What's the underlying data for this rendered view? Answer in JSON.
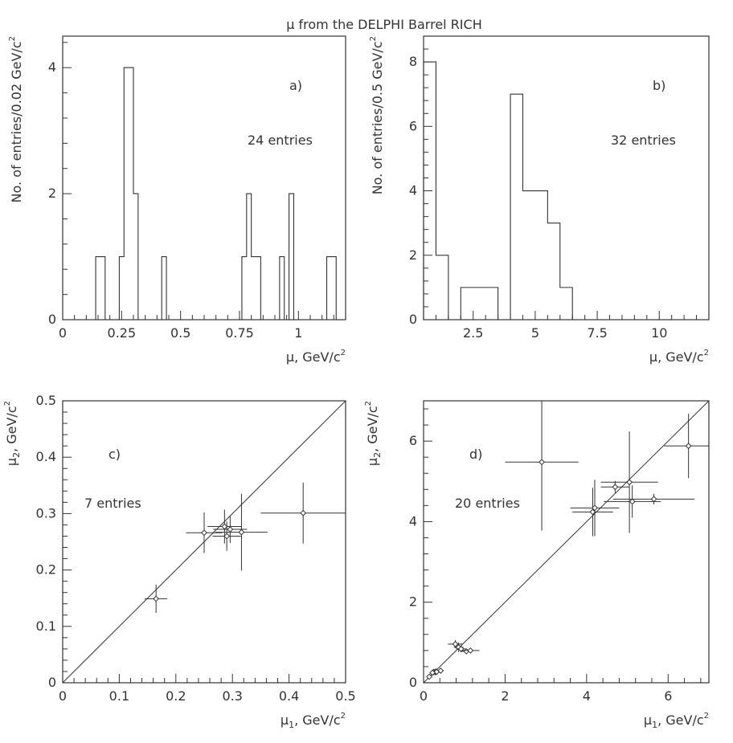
{
  "figure_title": "μ from the DELPHI Barrel RICH",
  "chart_data": [
    {
      "id": "a",
      "type": "histogram",
      "panel_label": "a)",
      "annotation": "24 entries",
      "xlabel": "μ, GeV/c",
      "xlabel_sup": "2",
      "ylabel": "No. of entries/0.02 GeV/c",
      "ylabel_sup": "2",
      "xlim": [
        0,
        1.2
      ],
      "ylim": [
        0,
        4.5
      ],
      "xticks": [
        0,
        0.25,
        0.5,
        0.75,
        1
      ],
      "xtick_labels": [
        "0",
        "0.25",
        "0.5",
        "0.75",
        "1"
      ],
      "yticks": [
        0,
        2,
        4
      ],
      "ytick_labels": [
        "0",
        "2",
        "4"
      ],
      "bin_width": 0.02,
      "bins": [
        {
          "x": 0.14,
          "count": 1
        },
        {
          "x": 0.16,
          "count": 1
        },
        {
          "x": 0.24,
          "count": 1
        },
        {
          "x": 0.26,
          "count": 4
        },
        {
          "x": 0.28,
          "count": 4
        },
        {
          "x": 0.3,
          "count": 2
        },
        {
          "x": 0.42,
          "count": 1
        },
        {
          "x": 0.76,
          "count": 1
        },
        {
          "x": 0.78,
          "count": 2
        },
        {
          "x": 0.8,
          "count": 1
        },
        {
          "x": 0.82,
          "count": 1
        },
        {
          "x": 0.92,
          "count": 1
        },
        {
          "x": 0.96,
          "count": 2
        },
        {
          "x": 1.12,
          "count": 1
        },
        {
          "x": 1.14,
          "count": 1
        }
      ]
    },
    {
      "id": "b",
      "type": "histogram",
      "panel_label": "b)",
      "annotation": "32 entries",
      "xlabel": "μ, GeV/c",
      "xlabel_sup": "2",
      "ylabel": "No. of entries/0.5 GeV/c",
      "ylabel_sup": "2",
      "xlim": [
        0.5,
        12
      ],
      "ylim": [
        0,
        8.8
      ],
      "xticks": [
        2.5,
        5,
        7.5,
        10
      ],
      "xtick_labels": [
        "2.5",
        "5",
        "7.5",
        "10"
      ],
      "yticks": [
        0,
        2,
        4,
        6,
        8
      ],
      "ytick_labels": [
        "0",
        "2",
        "4",
        "6",
        "8"
      ],
      "bin_width": 0.5,
      "bins": [
        {
          "x": 0.5,
          "count": 8
        },
        {
          "x": 1.0,
          "count": 2
        },
        {
          "x": 2.0,
          "count": 1
        },
        {
          "x": 2.5,
          "count": 1
        },
        {
          "x": 3.0,
          "count": 1
        },
        {
          "x": 4.0,
          "count": 7
        },
        {
          "x": 4.5,
          "count": 4
        },
        {
          "x": 5.0,
          "count": 4
        },
        {
          "x": 5.5,
          "count": 3
        },
        {
          "x": 6.0,
          "count": 1
        }
      ]
    },
    {
      "id": "c",
      "type": "scatter",
      "panel_label": "c)",
      "annotation": "7 entries",
      "xlabel": "μ",
      "xlabel_sub": "1",
      "xlabel_rest": ", GeV/c",
      "xlabel_sup": "2",
      "ylabel": "μ",
      "ylabel_sub": "2",
      "ylabel_rest": ", GeV/c",
      "ylabel_sup": "2",
      "xlim": [
        0,
        0.5
      ],
      "ylim": [
        0,
        0.5
      ],
      "xticks": [
        0,
        0.1,
        0.2,
        0.3,
        0.4,
        0.5
      ],
      "xtick_labels": [
        "0",
        "0.1",
        "0.2",
        "0.3",
        "0.4",
        "0.5"
      ],
      "yticks": [
        0,
        0.1,
        0.2,
        0.3,
        0.4,
        0.5
      ],
      "ytick_labels": [
        "0",
        "0.1",
        "0.2",
        "0.3",
        "0.4",
        "0.5"
      ],
      "diagonal": true,
      "points": [
        {
          "x": 0.165,
          "y": 0.149,
          "xerr": 0.02,
          "yerr": 0.025
        },
        {
          "x": 0.25,
          "y": 0.266,
          "xerr": 0.032,
          "yerr": 0.036
        },
        {
          "x": 0.286,
          "y": 0.277,
          "xerr": 0.03,
          "yerr": 0.03
        },
        {
          "x": 0.29,
          "y": 0.26,
          "xerr": 0.025,
          "yerr": 0.026
        },
        {
          "x": 0.296,
          "y": 0.272,
          "xerr": 0.03,
          "yerr": 0.024
        },
        {
          "x": 0.316,
          "y": 0.267,
          "xerr": 0.046,
          "yerr": 0.068
        },
        {
          "x": 0.425,
          "y": 0.301,
          "xerr": 0.075,
          "yerr": 0.054
        }
      ]
    },
    {
      "id": "d",
      "type": "scatter",
      "panel_label": "d)",
      "annotation": "20 entries",
      "xlabel": "μ",
      "xlabel_sub": "1",
      "xlabel_rest": ", GeV/c",
      "xlabel_sup": "2",
      "ylabel": "μ",
      "ylabel_sub": "2",
      "ylabel_rest": ", GeV/c",
      "ylabel_sup": "2",
      "xlim": [
        0,
        7
      ],
      "ylim": [
        0,
        7
      ],
      "xticks": [
        0,
        2,
        4,
        6
      ],
      "xtick_labels": [
        "0",
        "2",
        "4",
        "6"
      ],
      "yticks": [
        0,
        2,
        4,
        6
      ],
      "ytick_labels": [
        "0",
        "2",
        "4",
        "6"
      ],
      "diagonal": true,
      "points": [
        {
          "x": 0.14,
          "y": 0.15,
          "xerr": 0.02,
          "yerr": 0.02
        },
        {
          "x": 0.25,
          "y": 0.27,
          "xerr": 0.04,
          "yerr": 0.04
        },
        {
          "x": 0.29,
          "y": 0.26,
          "xerr": 0.04,
          "yerr": 0.04
        },
        {
          "x": 0.3,
          "y": 0.28,
          "xerr": 0.04,
          "yerr": 0.04
        },
        {
          "x": 0.32,
          "y": 0.27,
          "xerr": 0.05,
          "yerr": 0.05
        },
        {
          "x": 0.42,
          "y": 0.3,
          "xerr": 0.07,
          "yerr": 0.05
        },
        {
          "x": 0.78,
          "y": 0.96,
          "xerr": 0.18,
          "yerr": 0.1
        },
        {
          "x": 0.86,
          "y": 0.88,
          "xerr": 0.12,
          "yerr": 0.12
        },
        {
          "x": 0.92,
          "y": 0.84,
          "xerr": 0.12,
          "yerr": 0.08
        },
        {
          "x": 1.05,
          "y": 0.78,
          "xerr": 0.15,
          "yerr": 0.06
        },
        {
          "x": 1.15,
          "y": 0.8,
          "xerr": 0.22,
          "yerr": 0.06
        },
        {
          "x": 2.9,
          "y": 5.48,
          "xerr": 0.9,
          "yerr": 1.7
        },
        {
          "x": 4.15,
          "y": 4.24,
          "xerr": 0.5,
          "yerr": 0.6
        },
        {
          "x": 4.2,
          "y": 4.34,
          "xerr": 0.6,
          "yerr": 0.7
        },
        {
          "x": 4.7,
          "y": 4.86,
          "xerr": 0.35,
          "yerr": 0.15
        },
        {
          "x": 5.05,
          "y": 4.98,
          "xerr": 0.7,
          "yerr": 1.26
        },
        {
          "x": 5.12,
          "y": 4.5,
          "xerr": 0.7,
          "yerr": 0.4
        },
        {
          "x": 5.65,
          "y": 4.56,
          "xerr": 1.0,
          "yerr": 0.13
        },
        {
          "x": 6.5,
          "y": 5.88,
          "xerr": 0.6,
          "yerr": 0.8
        },
        {
          "x": 0.22,
          "y": 0.25,
          "xerr": 0.03,
          "yerr": 0.03
        }
      ]
    }
  ]
}
